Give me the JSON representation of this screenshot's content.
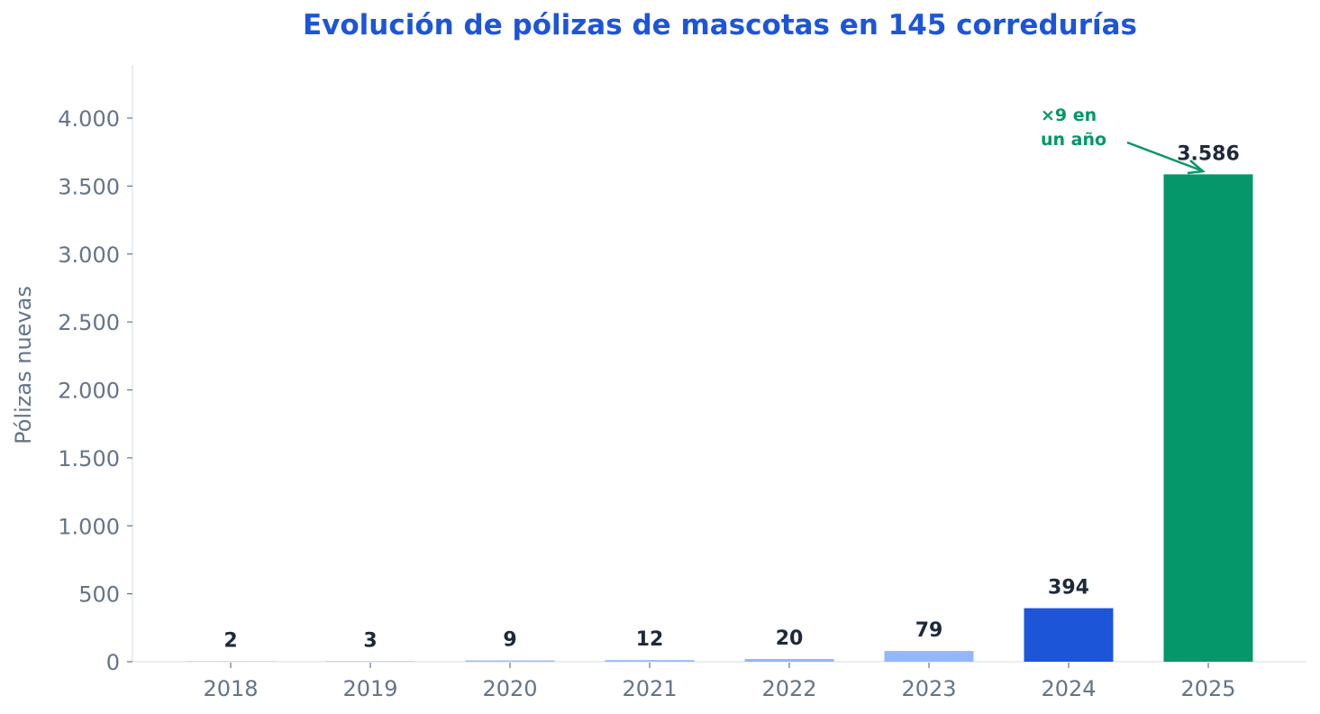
{
  "chart_data": {
    "type": "bar",
    "title": "Evolución de pólizas de mascotas en 145 corredurías",
    "xlabel": "",
    "ylabel": "Pólizas nuevas",
    "categories": [
      "2018",
      "2019",
      "2020",
      "2021",
      "2022",
      "2023",
      "2024",
      "2025"
    ],
    "values": [
      2,
      3,
      9,
      12,
      20,
      79,
      394,
      3586
    ],
    "value_labels": [
      "2",
      "3",
      "9",
      "12",
      "20",
      "79",
      "394",
      "3.586"
    ],
    "bar_colors": [
      "#93b8fa",
      "#93b8fa",
      "#93b8fa",
      "#93b8fa",
      "#93b8fa",
      "#93b8fa",
      "#1d55d9",
      "#059669"
    ],
    "ylim": [
      0,
      4400
    ],
    "yticks": [
      0,
      500,
      1000,
      1500,
      2000,
      2500,
      3000,
      3500,
      4000
    ],
    "ytick_labels": [
      "0",
      "500",
      "1.000",
      "1.500",
      "2.000",
      "2.500",
      "3.000",
      "3.500",
      "4.000"
    ],
    "grid": false,
    "legend": null,
    "annotations": [
      {
        "text_lines": [
          "×9 en",
          "un año"
        ],
        "target_category": "2025",
        "color": "#059669"
      }
    ]
  },
  "colors": {
    "title": "#1d55d9",
    "axis_text": "#64748b",
    "value_text": "#1e293b",
    "spine": "#e2e8f0",
    "annotation": "#059669"
  }
}
